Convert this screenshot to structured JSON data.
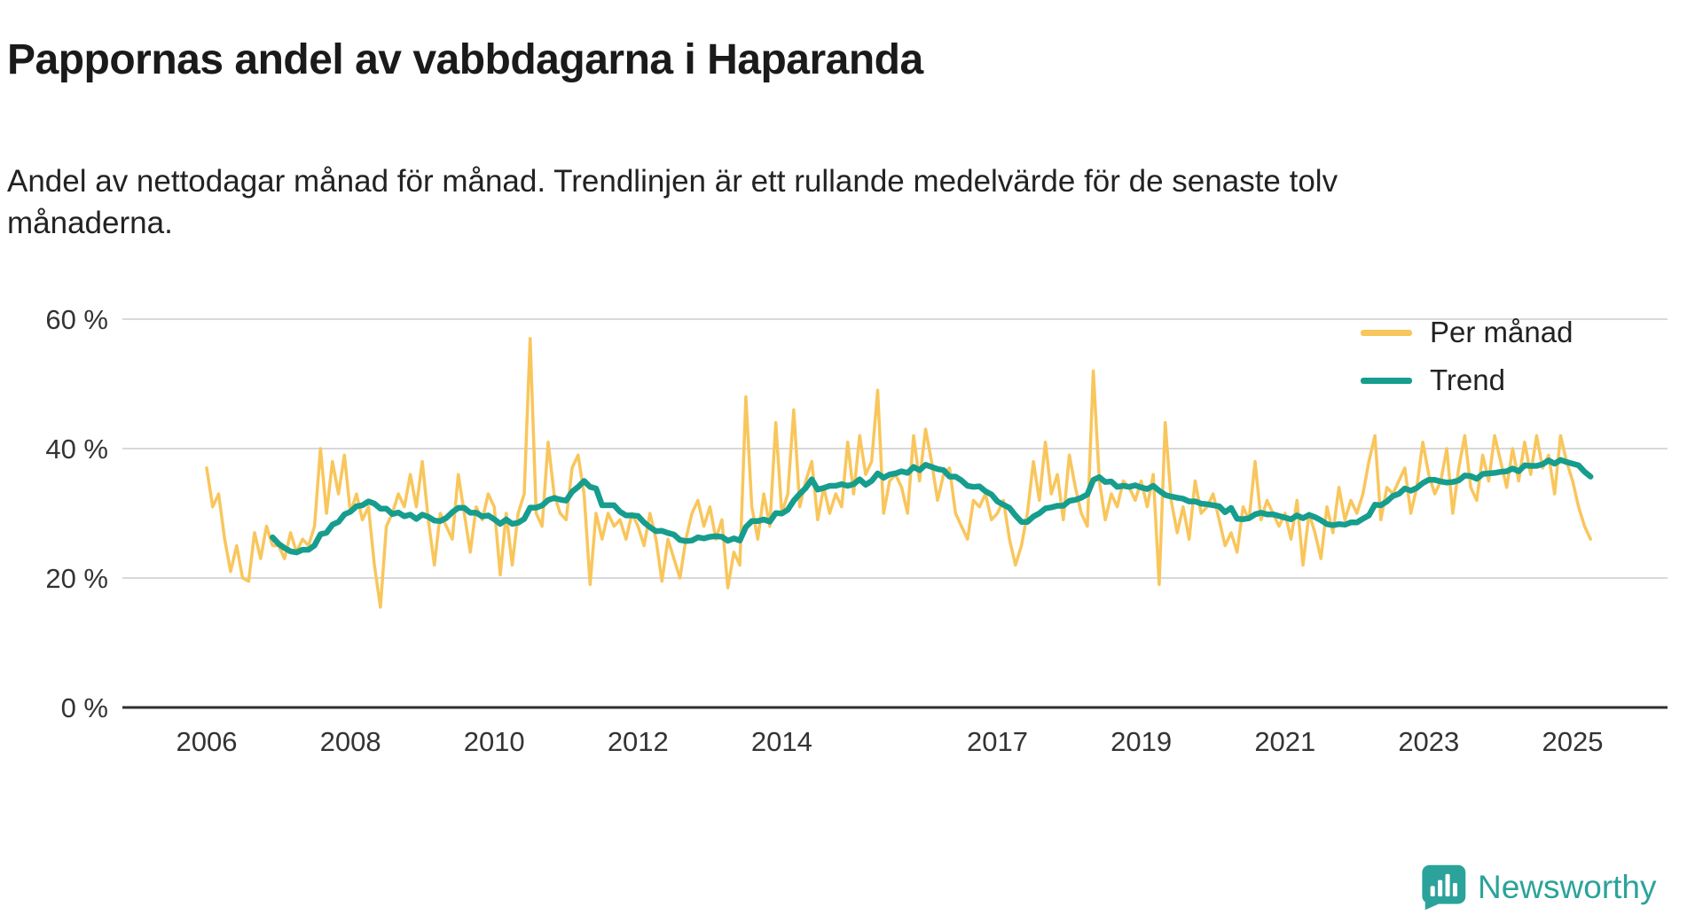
{
  "title": "Pappornas andel av vabbdagarna i Haparanda",
  "subtitle": "Andel av nettodagar månad för månad. Trendlinjen är ett rullande medelvärde för de senaste tolv månaderna.",
  "branding": {
    "logo_text": "Newsworthy"
  },
  "colors": {
    "monthly": "#f9c65c",
    "trend": "#169d8d",
    "grid": "#d9d9d9",
    "axis": "#2f2f2f",
    "tick_text": "#333333",
    "brand": "#2ba39a"
  },
  "chart_data": {
    "type": "line",
    "title": "Pappornas andel av vabbdagarna i Haparanda",
    "x_start": "2006-01",
    "x_end": "2025-04",
    "x_unit": "month",
    "ylim": [
      0,
      62
    ],
    "y_ticks": [
      "0 %",
      "20 %",
      "40 %",
      "60 %"
    ],
    "x_ticks": [
      "2006",
      "2008",
      "2010",
      "2012",
      "2014",
      "2017",
      "2019",
      "2021",
      "2023",
      "2025"
    ],
    "grid": "horizontal",
    "legend_position": "top-right",
    "series": [
      {
        "name": "Per månad",
        "color_key": "monthly",
        "values": [
          37,
          31,
          33,
          26,
          21,
          25,
          20,
          19.5,
          27,
          23,
          28,
          25,
          25,
          23,
          27,
          24,
          26,
          25,
          28,
          40,
          30,
          38,
          33,
          39,
          30,
          33,
          29,
          31,
          22,
          15.5,
          28,
          30,
          33,
          31,
          36,
          31,
          38,
          29,
          22,
          30,
          28,
          26,
          36,
          30,
          24,
          31,
          29,
          33,
          31,
          20.5,
          30,
          22,
          30,
          33,
          57,
          30,
          28,
          41,
          33,
          30,
          29,
          37,
          39,
          33,
          19,
          30,
          26,
          30,
          28,
          29,
          26,
          30,
          28,
          25,
          30,
          26,
          19.5,
          26,
          23,
          20,
          26,
          30,
          32,
          28,
          31,
          26,
          29,
          18.5,
          24,
          22,
          48,
          31,
          26,
          33,
          28,
          44,
          30,
          33,
          46,
          31,
          35,
          38,
          29,
          34,
          30,
          33,
          31,
          41,
          33,
          42,
          36,
          38,
          49,
          30,
          35,
          36,
          34,
          30,
          42,
          35,
          43,
          38,
          32,
          36,
          37,
          30,
          28,
          26,
          32,
          31,
          33,
          29,
          30,
          32,
          26,
          22,
          25,
          30,
          38,
          32,
          41,
          33,
          36,
          29,
          39,
          34,
          30,
          28,
          52,
          35,
          29,
          33,
          31,
          35,
          34,
          32,
          35,
          31,
          36,
          19,
          44,
          32,
          27,
          31,
          26,
          35,
          30,
          31,
          33,
          29,
          25,
          27,
          24,
          31,
          29,
          38,
          29,
          32,
          30,
          28,
          30,
          26,
          32,
          22,
          30,
          27,
          23,
          31,
          27,
          34,
          29,
          32,
          30,
          33,
          38,
          42,
          29,
          34,
          33,
          35,
          37,
          30,
          34,
          41,
          36,
          33,
          35,
          40,
          30,
          37,
          42,
          34,
          32,
          39,
          35,
          42,
          38,
          34,
          40,
          35,
          41,
          36,
          42,
          37,
          39,
          33,
          42,
          38,
          35,
          31,
          28,
          26
        ]
      },
      {
        "name": "Trend",
        "color_key": "trend",
        "derived": "rolling_mean_12_months_of_Per_månad"
      }
    ]
  }
}
